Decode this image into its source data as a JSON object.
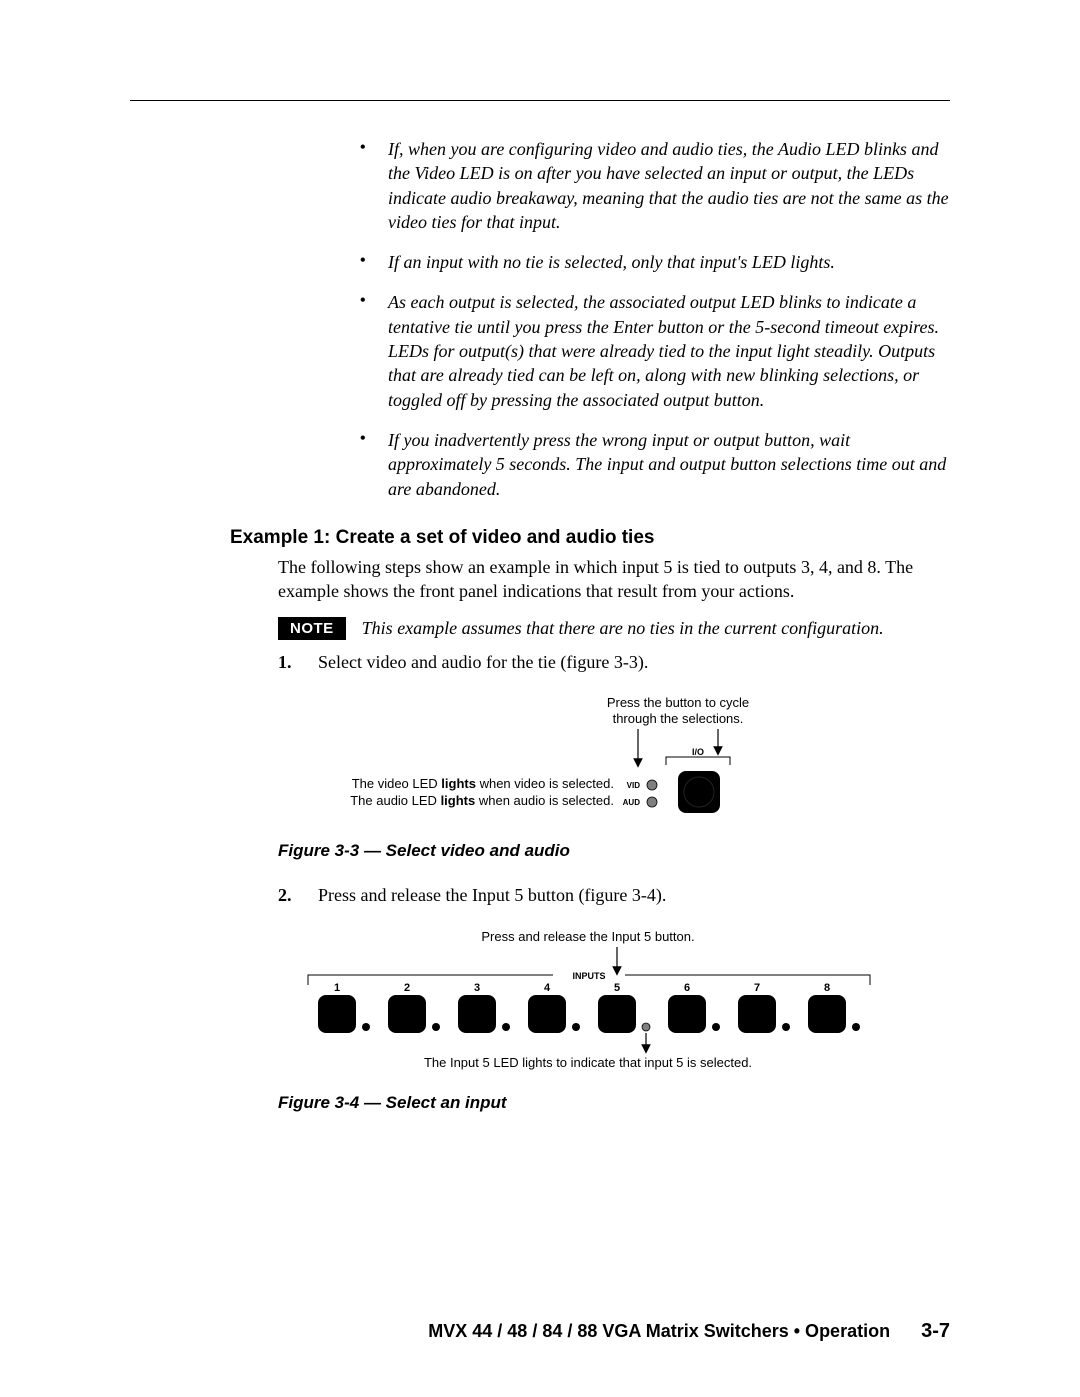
{
  "bullets": [
    "If, when you are configuring video and audio ties, the Audio LED blinks and the Video LED is on after you have selected an input or output, the LEDs indicate audio breakaway, meaning that the audio ties are not the same as the video ties for that input.",
    "If an input with no tie is selected, only that input's LED lights.",
    "As each output is selected, the associated output LED blinks to indicate a tentative tie until you press the Enter button or the 5-second timeout expires.  LEDs for output(s) that were already tied to the input light steadily.  Outputs that are already tied can be left on, along with new blinking selections, or toggled off by pressing the associated output button.",
    "If you inadvertently press the wrong input or output button, wait approximately 5 seconds.  The input and output button selections time out and are abandoned."
  ],
  "heading": "Example 1: Create a set of video and audio ties",
  "intro": "The following steps show an example in which input 5 is tied to outputs 3, 4, and 8. The example shows the front panel indications that result from your actions.",
  "note_label": "NOTE",
  "note_text": "This example assumes that there are no ties in the current configuration.",
  "step1_num": "1.",
  "step1_text": "Select video and audio for the tie (figure 3-3).",
  "step2_num": "2.",
  "step2_text": "Press and release the Input 5 button (figure 3-4).",
  "fig33_caption": "Figure 3-3 — Select video and audio",
  "fig34_caption": "Figure 3-4 — Select an input",
  "fig33": {
    "top_line1": "Press the button to cycle",
    "top_line2": "through the selections.",
    "vid_text_pre": "The video LED ",
    "vid_text_bold": "lights",
    "vid_text_post": " when video is selected.",
    "aud_text_pre": "The audio LED ",
    "aud_text_bold": "lights",
    "aud_text_post": " when audio is selected.",
    "vid_label": "VID",
    "aud_label": "AUD",
    "io_label": "I/O",
    "led_fill": "#7f7f7f",
    "button_fill": "#000000",
    "text_color": "#000000",
    "font_family": "Arial, Helvetica, sans-serif"
  },
  "fig34": {
    "top_line": "Press and release the Input 5 button.",
    "inputs_label": "INPUTS",
    "bottom_line": "The Input 5 LED lights to indicate that input 5 is selected.",
    "numbers": [
      "1",
      "2",
      "3",
      "4",
      "5",
      "6",
      "7",
      "8"
    ],
    "button_fill": "#000000",
    "led_off_fill": "#000000",
    "led_on_fill": "#7f7f7f",
    "led_on_index": 4,
    "text_color": "#000000",
    "font_family": "Arial, Helvetica, sans-serif"
  },
  "footer_text": "MVX 44 / 48 / 84 / 88 VGA Matrix Switchers • Operation",
  "footer_page": "3-7",
  "colors": {
    "rule": "#000000",
    "text": "#000000",
    "note_bg": "#000000",
    "note_fg": "#ffffff",
    "background": "#ffffff"
  }
}
